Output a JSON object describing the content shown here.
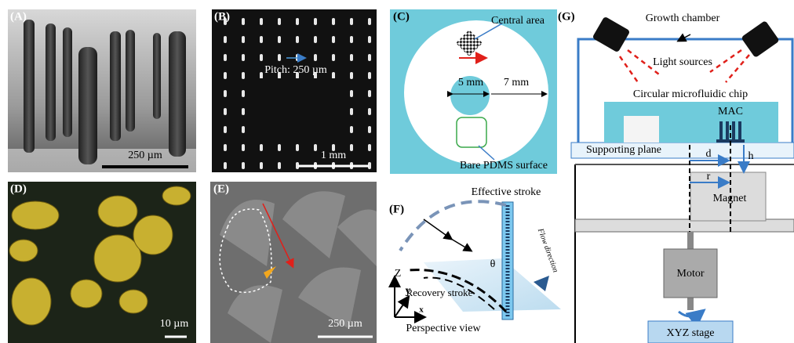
{
  "panels": [
    {
      "label": "(A)",
      "texts": [
        "250 µm"
      ]
    },
    {
      "label": "(B)",
      "texts": [
        "Pitch: 250 µm",
        "1 mm"
      ]
    },
    {
      "label": "(C)",
      "texts": [
        "Central area",
        "5 mm",
        "7 mm",
        "Bare PDMS surface"
      ]
    },
    {
      "label": "(D)",
      "texts": [
        "10 µm"
      ]
    },
    {
      "label": "(E)",
      "texts": [
        "250 µm"
      ]
    },
    {
      "label": "(F)",
      "texts": [
        "Effective stroke",
        "θ",
        "Recovery stroke",
        "Z",
        "y",
        "x",
        "Flow direction",
        "Perspective view"
      ]
    },
    {
      "label": "(G)",
      "texts": [
        "Growth chamber",
        "Light sources",
        "Circular microfluidic chip",
        "MAC",
        "Supporting plane",
        "d",
        "h",
        "r",
        "Magnet",
        "Motor",
        "XYZ stage"
      ]
    }
  ]
}
